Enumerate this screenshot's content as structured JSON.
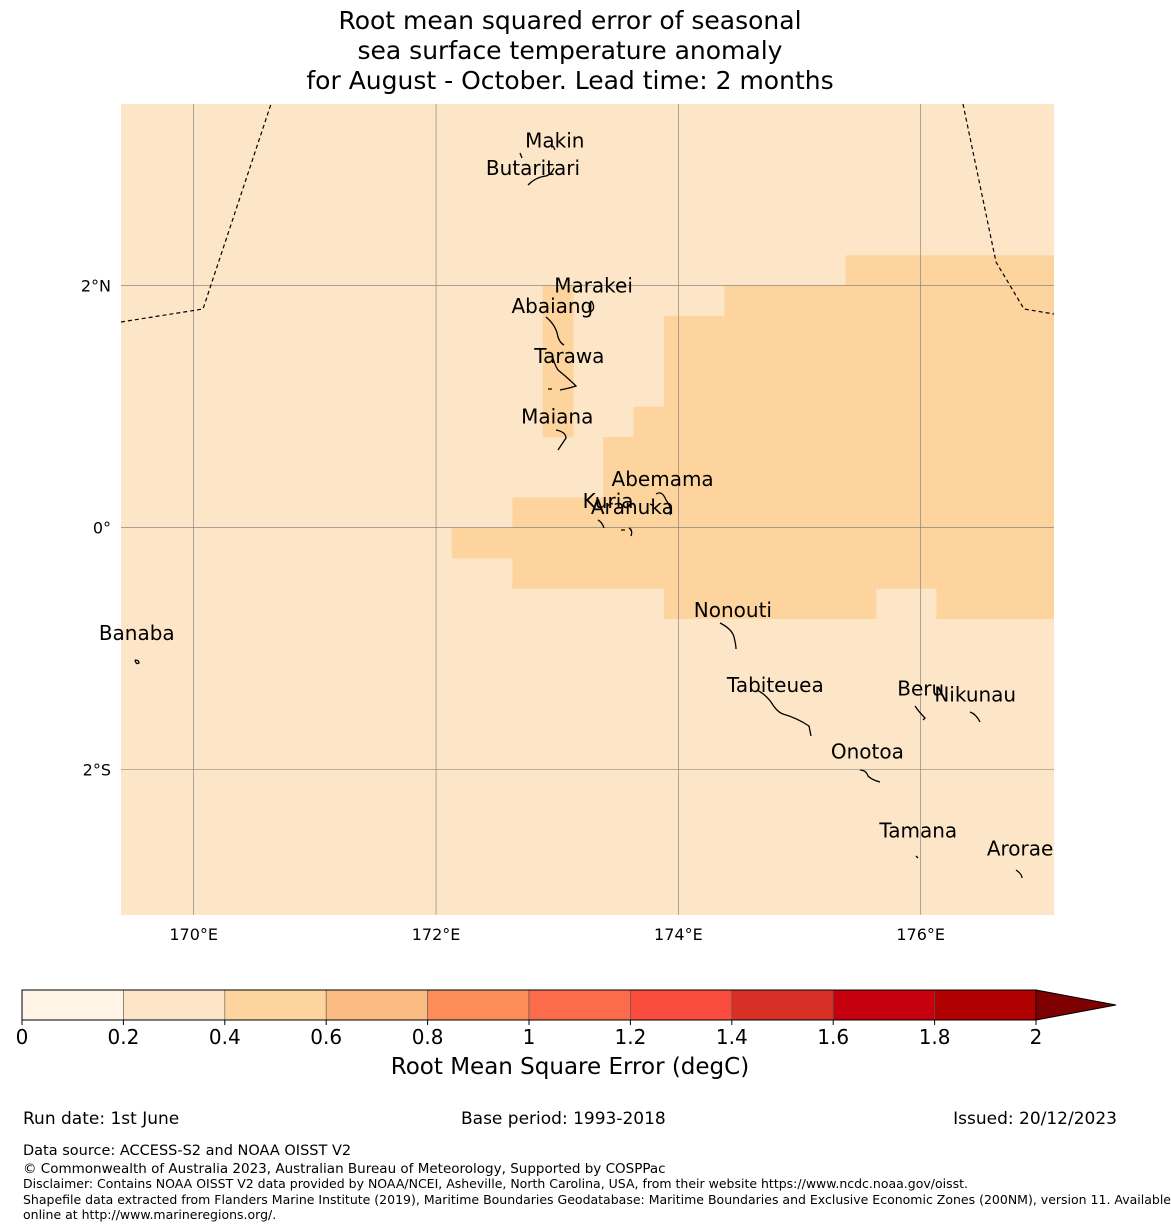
{
  "title": {
    "line1": "Root mean squared error of seasonal",
    "line2": "sea surface temperature anomaly",
    "line3": "for August - October. Lead time: 2 months"
  },
  "map": {
    "lon_range": [
      169.4,
      177.1
    ],
    "lat_range": [
      -3.2,
      3.5
    ],
    "background_color": "#fde6c8",
    "lat_ticks": [
      {
        "value": 2,
        "label": "2°N"
      },
      {
        "value": 0,
        "label": "0°"
      },
      {
        "value": -2,
        "label": "2°S"
      }
    ],
    "lon_ticks": [
      {
        "value": 170,
        "label": "170°E"
      },
      {
        "value": 172,
        "label": "172°E"
      },
      {
        "value": 174,
        "label": "174°E"
      },
      {
        "value": 176,
        "label": "176°E"
      }
    ],
    "places": [
      {
        "name": "Makin",
        "lon": 172.98,
        "lat": 3.2
      },
      {
        "name": "Butaritari",
        "lon": 172.8,
        "lat": 2.97
      },
      {
        "name": "Marakei",
        "lon": 173.3,
        "lat": 2.0
      },
      {
        "name": "Abaiang",
        "lon": 172.96,
        "lat": 1.83
      },
      {
        "name": "Tarawa",
        "lon": 173.1,
        "lat": 1.42
      },
      {
        "name": "Maiana",
        "lon": 173.0,
        "lat": 0.92
      },
      {
        "name": "Abemama",
        "lon": 173.87,
        "lat": 0.4
      },
      {
        "name": "Kuria",
        "lon": 173.42,
        "lat": 0.22
      },
      {
        "name": "Aranuka",
        "lon": 173.62,
        "lat": 0.17
      },
      {
        "name": "Nonouti",
        "lon": 174.45,
        "lat": -0.68
      },
      {
        "name": "Banaba",
        "lon": 169.53,
        "lat": -0.87
      },
      {
        "name": "Tabiteuea",
        "lon": 174.8,
        "lat": -1.3
      },
      {
        "name": "Beru",
        "lon": 176.0,
        "lat": -1.33
      },
      {
        "name": "Nikunau",
        "lon": 176.45,
        "lat": -1.38
      },
      {
        "name": "Onotoa",
        "lon": 175.56,
        "lat": -1.85
      },
      {
        "name": "Tamana",
        "lon": 175.98,
        "lat": -2.5
      },
      {
        "name": "Arorae",
        "lon": 176.82,
        "lat": -2.65
      }
    ]
  },
  "chart_data": {
    "type": "heatmap",
    "variable": "Root Mean Square Error (degC)",
    "grid_resolution_deg": 0.25,
    "cells_0.4_to_0.6": [
      {
        "lon": [
          172.88,
          173.13
        ],
        "lat": [
          0.75,
          2.0
        ]
      },
      {
        "lon": [
          175.38,
          177.1
        ],
        "lat": [
          2.0,
          2.25
        ]
      },
      {
        "lon": [
          174.38,
          177.1
        ],
        "lat": [
          1.75,
          2.0
        ]
      },
      {
        "lon": [
          173.88,
          177.1
        ],
        "lat": [
          1.0,
          1.75
        ]
      },
      {
        "lon": [
          173.63,
          177.1
        ],
        "lat": [
          0.75,
          1.0
        ]
      },
      {
        "lon": [
          173.38,
          177.1
        ],
        "lat": [
          0.25,
          0.75
        ]
      },
      {
        "lon": [
          172.63,
          177.1
        ],
        "lat": [
          0.0,
          0.25
        ]
      },
      {
        "lon": [
          172.13,
          177.1
        ],
        "lat": [
          -0.25,
          0.0
        ]
      },
      {
        "lon": [
          172.63,
          177.1
        ],
        "lat": [
          -0.5,
          -0.25
        ]
      },
      {
        "lon": [
          173.88,
          175.63
        ],
        "lat": [
          -0.75,
          -0.5
        ]
      },
      {
        "lon": [
          176.13,
          177.1
        ],
        "lat": [
          -0.75,
          -0.5
        ]
      }
    ],
    "colorbar": {
      "label": "Root Mean Square Error (degC)",
      "levels": [
        0,
        0.2,
        0.4,
        0.6,
        0.8,
        1,
        1.2,
        1.4,
        1.6,
        1.8,
        2
      ],
      "tick_labels": [
        "0",
        "0.2",
        "0.4",
        "0.6",
        "0.8",
        "1",
        "1.2",
        "1.4",
        "1.6",
        "1.8",
        "2"
      ],
      "colors": [
        "#fff4e6",
        "#fde6c8",
        "#fdd49e",
        "#fdbb84",
        "#fc8d59",
        "#fc6b4c",
        "#fb4d3d",
        "#d73027",
        "#c7000f",
        "#b10000"
      ],
      "extend_color": "#7f0000"
    }
  },
  "footer": {
    "run_date": "Run date: 1st June",
    "base_period": "Base period: 1993-2018",
    "issued": "Issued: 20/12/2023",
    "data_source": "Data source: ACCESS-S2 and NOAA OISST V2",
    "copyright": "© Commonwealth of Australia 2023, Australian Bureau of Meteorology, Supported by COSPPac",
    "disclaimer": "Disclaimer: Contains NOAA OISST V2 data provided by NOAA/NCEI, Asheville, North Carolina, USA, from their website https://www.ncdc.noaa.gov/oisst.",
    "shapefile1": "Shapefile data extracted from Flanders Marine Institute (2019), Maritime Boundaries Geodatabase: Maritime Boundaries and Exclusive Economic Zones (200NM), version 11. Available",
    "shapefile2": "online at http://www.marineregions.org/."
  }
}
